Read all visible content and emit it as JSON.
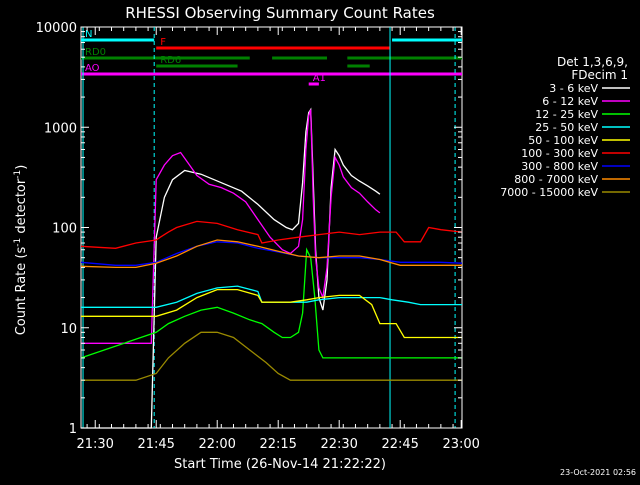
{
  "chart_data": {
    "type": "line",
    "title": "RHESSI Observing Summary Count Rates",
    "xlabel": "Start Time (26-Nov-14 21:22:22)",
    "ylabel_main": "Count Rate (s",
    "ylabel_sup1": "-1",
    "ylabel_mid": " detector",
    "ylabel_sup2": "-1",
    "ylabel_end": ")",
    "ylog": true,
    "xlim_min": [
      86.5,
      180.2
    ],
    "ylim": [
      1,
      10000
    ],
    "x_ticks": [
      {
        "v": 90,
        "label": "21:30"
      },
      {
        "v": 105,
        "label": "21:45"
      },
      {
        "v": 120,
        "label": "22:00"
      },
      {
        "v": 135,
        "label": "22:15"
      },
      {
        "v": 150,
        "label": "22:30"
      },
      {
        "v": 165,
        "label": "22:45"
      },
      {
        "v": 180,
        "label": "23:00"
      }
    ],
    "y_ticks": [
      {
        "v": 1,
        "label": "1"
      },
      {
        "v": 10,
        "label": "10"
      },
      {
        "v": 100,
        "label": "100"
      },
      {
        "v": 1000,
        "label": "1000"
      },
      {
        "v": 10000,
        "label": "10000"
      }
    ],
    "legend_header": [
      "Det 1,3,6,9,",
      "FDecim 1"
    ],
    "series": [
      {
        "name": "3 - 6 keV",
        "color": "#ffffff",
        "x": [
          86.5,
          103,
          103.8,
          105,
          107,
          109,
          112,
          116,
          121,
          126,
          130,
          134,
          137,
          138.5,
          140,
          141,
          141.8,
          142.5,
          143,
          143.6,
          144.2,
          145,
          146,
          147,
          148,
          149,
          150,
          151,
          153,
          155,
          157,
          159,
          160
        ],
        "y": [
          1,
          1,
          1,
          80,
          200,
          300,
          370,
          340,
          280,
          230,
          170,
          120,
          100,
          95,
          110,
          280,
          900,
          1400,
          1500,
          300,
          60,
          20,
          15,
          30,
          250,
          600,
          520,
          420,
          330,
          290,
          260,
          230,
          215
        ]
      },
      {
        "name": "6 - 12 keV",
        "color": "#ff00ff",
        "x": [
          86.5,
          103,
          103.8,
          105,
          107,
          109,
          111,
          113,
          115,
          118,
          121,
          124,
          127,
          130,
          133,
          136,
          138,
          140,
          141,
          141.8,
          142.5,
          143,
          143.6,
          144.2,
          145,
          146,
          147,
          148,
          149,
          150,
          151,
          153,
          155,
          157,
          159,
          160
        ],
        "y": [
          7,
          7,
          7,
          300,
          420,
          520,
          560,
          430,
          330,
          270,
          250,
          220,
          180,
          120,
          80,
          60,
          55,
          65,
          120,
          600,
          1300,
          1500,
          200,
          50,
          25,
          20,
          40,
          200,
          500,
          420,
          320,
          250,
          220,
          180,
          150,
          140
        ]
      },
      {
        "name": "12 - 25 keV",
        "color": "#00ff00",
        "x": [
          86.5,
          105,
          108,
          112,
          116,
          120,
          124,
          128,
          131,
          134,
          136,
          138,
          140,
          141,
          142,
          143,
          144,
          145,
          146,
          148,
          150,
          152,
          155,
          160,
          170,
          180.2
        ],
        "y": [
          5,
          9,
          11,
          13,
          15,
          16,
          14,
          12,
          11,
          9,
          8,
          8,
          9,
          14,
          60,
          50,
          20,
          6,
          5,
          5,
          5,
          5,
          5,
          5,
          5,
          5
        ]
      },
      {
        "name": "25 - 50 keV",
        "color": "#00ffff",
        "x": [
          86.5,
          105,
          110,
          115,
          120,
          125,
          130,
          131,
          138,
          142,
          145,
          150,
          155,
          160,
          163,
          167,
          170,
          172,
          175,
          178,
          180.2
        ],
        "y": [
          16,
          16,
          18,
          22,
          25,
          26,
          23,
          18,
          18,
          18,
          19,
          20,
          20,
          20,
          19,
          18,
          17,
          17,
          17,
          17,
          17
        ]
      },
      {
        "name": "50 - 100 keV",
        "color": "#ffff00",
        "x": [
          86.5,
          105,
          110,
          115,
          120,
          125,
          130,
          131,
          138,
          142,
          145,
          150,
          155,
          158,
          160,
          164,
          166,
          170,
          175,
          180.2
        ],
        "y": [
          13,
          13,
          15,
          20,
          24,
          24,
          21,
          18,
          18,
          19,
          20,
          21,
          21,
          17,
          11,
          11,
          8,
          8,
          8,
          8
        ]
      },
      {
        "name": "100 - 300 keV",
        "color": "#ff0000",
        "x": [
          86.5,
          95,
          100,
          105,
          106,
          108,
          110,
          115,
          120,
          125,
          130,
          131,
          135,
          140,
          145,
          150,
          155,
          160,
          164,
          166,
          170,
          172,
          175,
          180.2
        ],
        "y": [
          65,
          62,
          70,
          75,
          80,
          90,
          100,
          115,
          110,
          95,
          85,
          70,
          75,
          80,
          85,
          90,
          85,
          90,
          90,
          72,
          72,
          100,
          95,
          90
        ]
      },
      {
        "name": "300 - 800 keV",
        "color": "#0000ff",
        "x": [
          86.5,
          95,
          100,
          105,
          110,
          115,
          120,
          125,
          130,
          135,
          140,
          145,
          150,
          155,
          160,
          165,
          170,
          175,
          180.2
        ],
        "y": [
          45,
          42,
          42,
          45,
          55,
          65,
          72,
          70,
          62,
          57,
          52,
          50,
          50,
          50,
          48,
          45,
          45,
          45,
          44
        ]
      },
      {
        "name": "800 - 7000 keV",
        "color": "#ff8c00",
        "x": [
          86.5,
          95,
          100,
          105,
          110,
          115,
          120,
          125,
          130,
          135,
          140,
          145,
          150,
          155,
          160,
          165,
          170,
          175,
          180.2
        ],
        "y": [
          41,
          40,
          40,
          44,
          52,
          65,
          75,
          72,
          65,
          58,
          52,
          50,
          52,
          52,
          48,
          42,
          42,
          42,
          42
        ]
      },
      {
        "name": "7000 - 15000 keV",
        "color": "#9a8a00",
        "x": [
          86.5,
          100,
          105,
          108,
          112,
          116,
          120,
          124,
          128,
          132,
          135,
          138,
          141,
          145,
          150,
          155,
          160,
          165,
          170,
          175,
          180.2
        ],
        "y": [
          3,
          3,
          3.5,
          5,
          7,
          9,
          9,
          8,
          6,
          4.5,
          3.5,
          3,
          3,
          3,
          3,
          3,
          3,
          3,
          3,
          3,
          3
        ]
      }
    ],
    "status_bars": [
      {
        "label": "N",
        "color": "#00ffff",
        "segments": [
          [
            86.5,
            104.5
          ],
          [
            163,
            180.2
          ]
        ],
        "y": 40
      },
      {
        "label": "F",
        "color": "#ff0000",
        "segments": [
          [
            105,
            162.5
          ]
        ],
        "y": 48
      },
      {
        "label": "RD0",
        "color": "#008000",
        "segments": [
          [
            86.5,
            128
          ],
          [
            133.5,
            147
          ],
          [
            152,
            180.2
          ]
        ],
        "y": 58
      },
      {
        "label": "RD6",
        "color": "#008000",
        "segments": [
          [
            105,
            125
          ],
          [
            152,
            157.5
          ]
        ],
        "y": 66
      },
      {
        "label": "AO",
        "color": "#ff00ff",
        "segments": [
          [
            86.5,
            180.2
          ]
        ],
        "y": 74
      },
      {
        "label": "A1",
        "color": "#ff00ff",
        "segments": [
          [
            142.5,
            145
          ]
        ],
        "y": 84
      }
    ],
    "vertical_markers": [
      {
        "x": 104.5,
        "color": "#00ffff",
        "dashed": true
      },
      {
        "x": 162.5,
        "color": "#00ffff",
        "dashed": false
      },
      {
        "x": 178.5,
        "color": "#00ffff",
        "dashed": true
      },
      {
        "x": 87,
        "color": "#00ffff",
        "dashed": false
      }
    ],
    "timestamp": "23-Oct-2021 02:56"
  }
}
